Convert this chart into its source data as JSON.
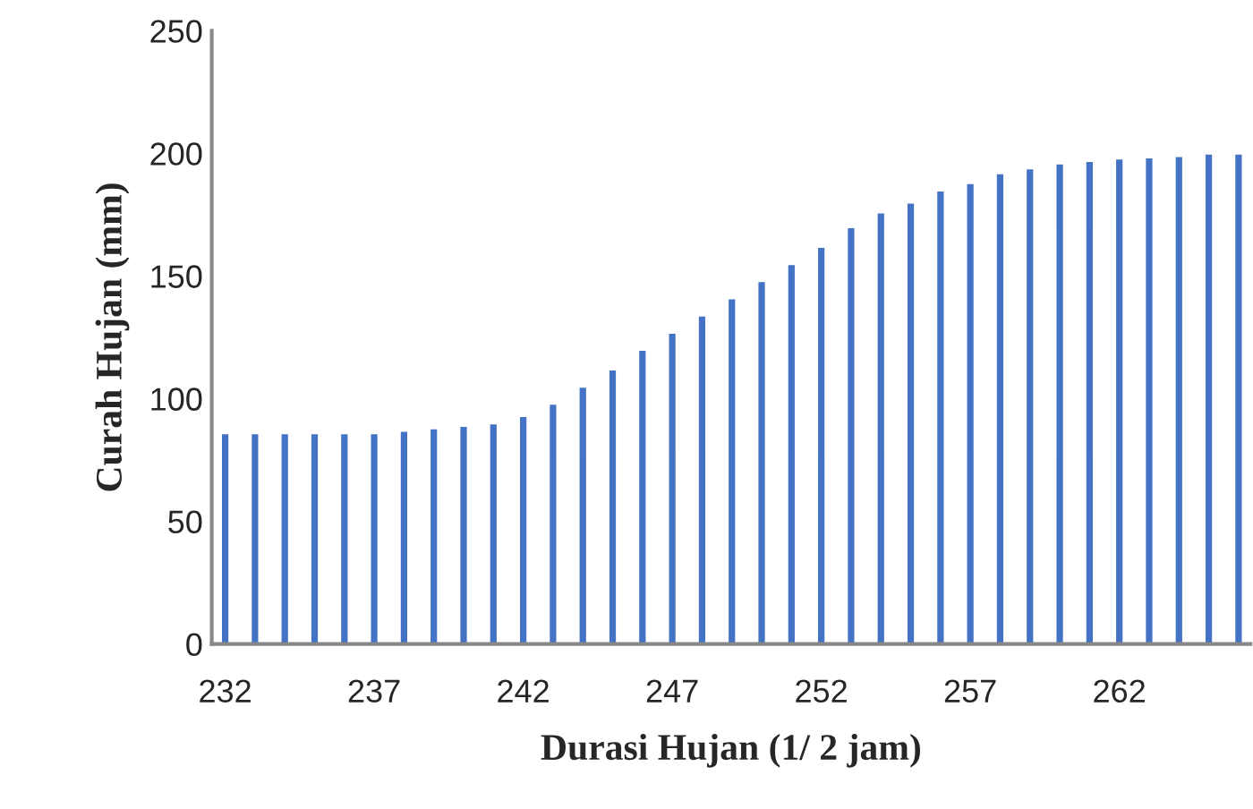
{
  "chart_data": {
    "type": "bar",
    "xlabel": "Durasi Hujan (1/ 2 jam)",
    "ylabel": "Curah Hujan (mm)",
    "categories": [
      "232",
      null,
      null,
      null,
      null,
      "237",
      null,
      null,
      null,
      null,
      "242",
      null,
      null,
      null,
      null,
      "247",
      null,
      null,
      null,
      null,
      "252",
      null,
      null,
      null,
      null,
      "257",
      null,
      null,
      null,
      null,
      "262",
      null,
      null,
      null,
      null
    ],
    "values": [
      86,
      86,
      86,
      86,
      86,
      86,
      87,
      88,
      89,
      90,
      93,
      98,
      105,
      112,
      120,
      127,
      134,
      141,
      148,
      155,
      162,
      170,
      176,
      180,
      185,
      188,
      192,
      194,
      196,
      197,
      198,
      198.5,
      199,
      200,
      200
    ],
    "color": "#4472c4",
    "ylim": [
      0,
      250
    ],
    "yticks": [
      0,
      50,
      100,
      150,
      200,
      250
    ],
    "grid": false,
    "legend": false
  }
}
